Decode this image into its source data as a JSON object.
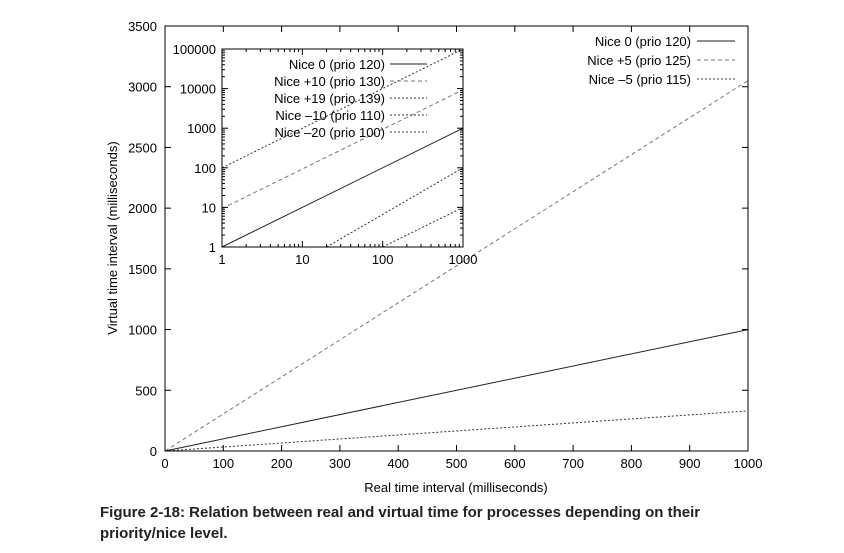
{
  "caption": "Figure 2-18: Relation between real and virtual time for processes depending on their priority/nice level.",
  "chart_data": [
    {
      "type": "line",
      "xlabel": "Real time interval (milliseconds)",
      "ylabel": "Virtual time interval (milliseconds)",
      "xlim": [
        0,
        1000
      ],
      "ylim": [
        0,
        3500
      ],
      "x_ticks": [
        0,
        100,
        200,
        300,
        400,
        500,
        600,
        700,
        800,
        900,
        1000
      ],
      "y_ticks": [
        0,
        500,
        1000,
        1500,
        2000,
        2500,
        3000,
        3500
      ],
      "grid": false,
      "legend_position": "top-right",
      "series": [
        {
          "name": "Nice 0 (prio 120)",
          "style": "solid",
          "x": [
            0,
            1000
          ],
          "y": [
            0,
            1000
          ]
        },
        {
          "name": "Nice +5 (prio 125)",
          "style": "dashed",
          "x": [
            0,
            1000
          ],
          "y": [
            0,
            3050
          ]
        },
        {
          "name": "Nice –5 (prio 115)",
          "style": "dotted",
          "x": [
            0,
            1000
          ],
          "y": [
            0,
            330
          ]
        }
      ]
    },
    {
      "type": "line",
      "scale": "log-log",
      "xlim": [
        1,
        1000
      ],
      "ylim": [
        1,
        100000
      ],
      "x_ticks": [
        {
          "value": 1,
          "label": "1"
        },
        {
          "value": 10,
          "label": "10"
        },
        {
          "value": 100,
          "label": "100"
        },
        {
          "value": 1000,
          "label": "1000"
        }
      ],
      "y_ticks": [
        {
          "value": 1,
          "label": "1"
        },
        {
          "value": 10,
          "label": "10"
        },
        {
          "value": 100,
          "label": "100"
        },
        {
          "value": 1000,
          "label": "1000"
        },
        {
          "value": 10000,
          "label": "10000"
        },
        {
          "value": 100000,
          "label": "100000"
        }
      ],
      "grid": false,
      "legend_position": "top-left",
      "series": [
        {
          "name": "Nice 0 (prio 120)",
          "style": "solid",
          "x": [
            1,
            1000
          ],
          "y": [
            1,
            1000
          ]
        },
        {
          "name": "Nice +10 (prio 130)",
          "style": "dashed",
          "x": [
            1,
            1000
          ],
          "y": [
            9.3,
            9300
          ]
        },
        {
          "name": "Nice +19 (prio 139)",
          "style": "dotted",
          "x": [
            1,
            1000
          ],
          "y": [
            100,
            100000
          ]
        },
        {
          "name": "Nice –10 (prio 110)",
          "style": "dotted",
          "x": [
            20,
            1000
          ],
          "y": [
            1,
            100
          ]
        },
        {
          "name": "Nice –20 (prio 100)",
          "style": "dotted",
          "x": [
            100,
            1000
          ],
          "y": [
            1,
            10
          ]
        }
      ]
    }
  ]
}
